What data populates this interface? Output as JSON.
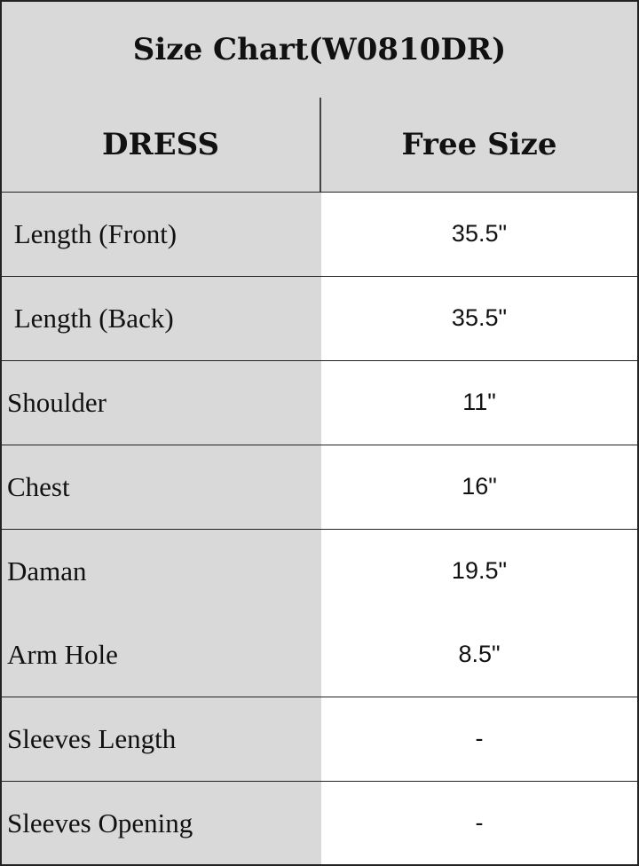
{
  "title": "Size Chart(W0810DR)",
  "header": {
    "col1": "DRESS",
    "col2": "Free Size"
  },
  "rows": [
    {
      "label": " Length (Front)",
      "value": "35.5\""
    },
    {
      "label": " Length (Back)",
      "value": "35.5\""
    },
    {
      "label": "Shoulder",
      "value": "11\""
    },
    {
      "label": "Chest",
      "value": "16\""
    },
    {
      "label": "Daman",
      "value": "19.5\""
    },
    {
      "label": "Arm Hole",
      "value": "8.5\""
    },
    {
      "label": "Sleeves Length",
      "value": "-"
    },
    {
      "label": "Sleeves Opening",
      "value": "-"
    }
  ],
  "colors": {
    "header_bg": "#d9d9d9",
    "value_bg": "#ffffff",
    "border": "#222222"
  }
}
